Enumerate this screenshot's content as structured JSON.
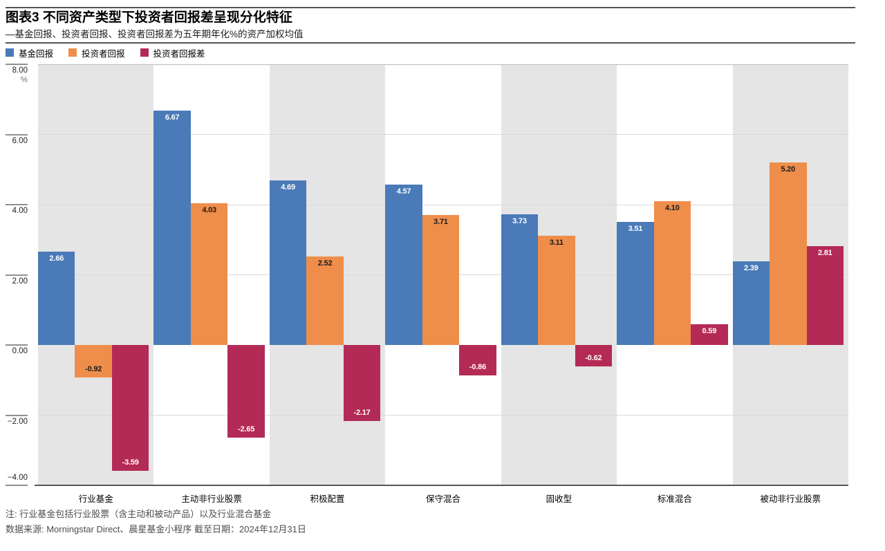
{
  "header": {
    "title": "图表3 不同资产类型下投资者回报差呈现分化特征",
    "subtitle": "—基金回报、投资者回报、投资者回报差为五年期年化%的资产加权均值"
  },
  "footer": {
    "note": "注: 行业基金包括行业股票（含主动和被动产品）以及行业混合基金",
    "source": "数据来源: Morningstar Direct、晨星基金小程序 截至日期：2024年12月31日"
  },
  "chart_data": {
    "type": "bar",
    "title": "图表3 不同资产类型下投资者回报差呈现分化特征",
    "subtitle": "—基金回报、投资者回报、投资者回报差为五年期年化%的资产加权均值",
    "unit": "%",
    "categories": [
      "行业基金",
      "主动非行业股票",
      "积极配置",
      "保守混合",
      "固收型",
      "标准混合",
      "被动非行业股票"
    ],
    "series": [
      {
        "name": "基金回报",
        "color": "#4a7ab8",
        "label_color": "#ffffff",
        "values": [
          2.66,
          6.67,
          4.69,
          4.57,
          3.73,
          3.51,
          2.39
        ]
      },
      {
        "name": "投资者回报",
        "color": "#ef8e4a",
        "label_color": "#1a1a1a",
        "values": [
          -0.92,
          4.03,
          2.52,
          3.71,
          3.11,
          4.1,
          5.2
        ]
      },
      {
        "name": "投资者回报差",
        "color": "#b42a56",
        "label_color": "#ffffff",
        "values": [
          -3.59,
          -2.65,
          -2.17,
          -0.86,
          -0.62,
          0.59,
          2.81
        ]
      }
    ],
    "ylim": [
      -4,
      8
    ],
    "yticks": [
      {
        "v": 8,
        "label": "8.00"
      },
      {
        "v": 6,
        "label": "6.00"
      },
      {
        "v": 4,
        "label": "4.00"
      },
      {
        "v": 2,
        "label": "2.00"
      },
      {
        "v": 0,
        "label": "0.00"
      },
      {
        "v": -2,
        "label": "−2.00"
      },
      {
        "v": -4,
        "label": "−4.00"
      }
    ],
    "grid": true,
    "legend_position": "top-left",
    "band_fill_color": "#e5e5e5",
    "gridline_color": "#d9d9d9",
    "top_gridline_color": "#b9b9b9"
  }
}
